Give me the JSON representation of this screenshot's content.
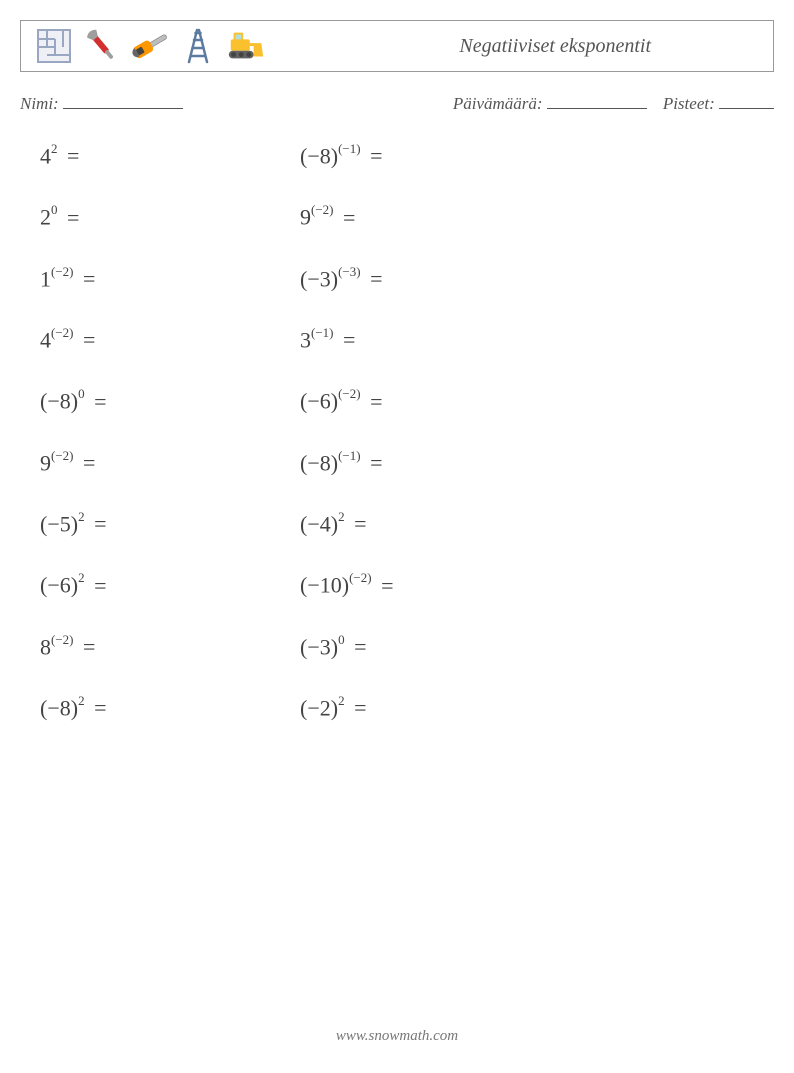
{
  "header": {
    "title": "Negatiiviset eksponentit",
    "icons": [
      "maze-icon",
      "wrench-icon",
      "chainsaw-icon",
      "ladder-icon",
      "bulldozer-icon"
    ]
  },
  "meta": {
    "name_label": "Nimi:",
    "date_label": "Päivämäärä:",
    "score_label": "Pisteet:",
    "name_blank_width": 120,
    "date_blank_width": 100,
    "score_blank_width": 55
  },
  "problems": {
    "col1": [
      {
        "base": "4",
        "exp": "2"
      },
      {
        "base": "2",
        "exp": "0"
      },
      {
        "base": "1",
        "exp": "(−2)"
      },
      {
        "base": "4",
        "exp": "(−2)"
      },
      {
        "base": "(−8)",
        "exp": "0"
      },
      {
        "base": "9",
        "exp": "(−2)"
      },
      {
        "base": "(−5)",
        "exp": "2"
      },
      {
        "base": "(−6)",
        "exp": "2"
      },
      {
        "base": "8",
        "exp": "(−2)"
      },
      {
        "base": "(−8)",
        "exp": "2"
      }
    ],
    "col2": [
      {
        "base": "(−8)",
        "exp": "(−1)"
      },
      {
        "base": "9",
        "exp": "(−2)"
      },
      {
        "base": "(−3)",
        "exp": "(−3)"
      },
      {
        "base": "3",
        "exp": "(−1)"
      },
      {
        "base": "(−6)",
        "exp": "(−2)"
      },
      {
        "base": "(−8)",
        "exp": "(−1)"
      },
      {
        "base": "(−4)",
        "exp": "2"
      },
      {
        "base": "(−10)",
        "exp": "(−2)"
      },
      {
        "base": "(−3)",
        "exp": "0"
      },
      {
        "base": "(−2)",
        "exp": "2"
      }
    ]
  },
  "footer": "www.snowmath.com",
  "colors": {
    "text": "#444444",
    "border": "#999999",
    "background": "#ffffff",
    "wrench_handle": "#d32f2f",
    "wrench_metal": "#9e9e9e",
    "chainsaw_body": "#ff9800",
    "chainsaw_blade": "#bdbdbd",
    "ladder": "#5c7ba0",
    "bulldozer_body": "#fbc02d",
    "bulldozer_track": "#616161",
    "maze": "#9aa7c2"
  }
}
